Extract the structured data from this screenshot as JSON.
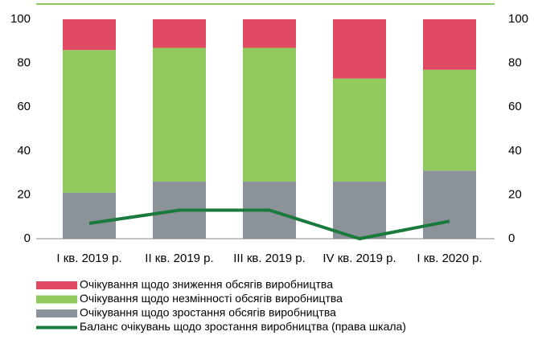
{
  "chart_data": {
    "type": "bar",
    "stacked": true,
    "categories": [
      "I кв. 2019 р.",
      "II кв. 2019 р.",
      "III кв. 2019 р.",
      "IV кв. 2019 р.",
      "I кв. 2020 р."
    ],
    "series": [
      {
        "name": "Очікування щодо зростання обсягів виробництва",
        "color": "#8c9299",
        "values": [
          21,
          26,
          26,
          26,
          31
        ]
      },
      {
        "name": "Очікування щодо незмінності обсягів виробництва",
        "color": "#92c95f",
        "values": [
          65,
          61,
          61,
          47,
          46
        ]
      },
      {
        "name": "Очікування щодо зниження обсягів виробництва",
        "color": "#e04a64",
        "values": [
          14,
          13,
          13,
          27,
          23
        ]
      },
      {
        "name": "Баланс очікувань щодо зростання виробництва (права шкала)",
        "color": "#1a7a3c",
        "type": "line",
        "axis": "y2",
        "values": [
          7,
          13,
          13,
          0,
          8
        ]
      }
    ],
    "ylim": [
      0,
      100
    ],
    "yticks": [
      0,
      20,
      40,
      60,
      80,
      100
    ],
    "y2lim": [
      0,
      100
    ],
    "y2ticks": [
      0,
      20,
      40,
      60,
      80,
      100
    ],
    "grid": false,
    "legend": "bottom"
  }
}
